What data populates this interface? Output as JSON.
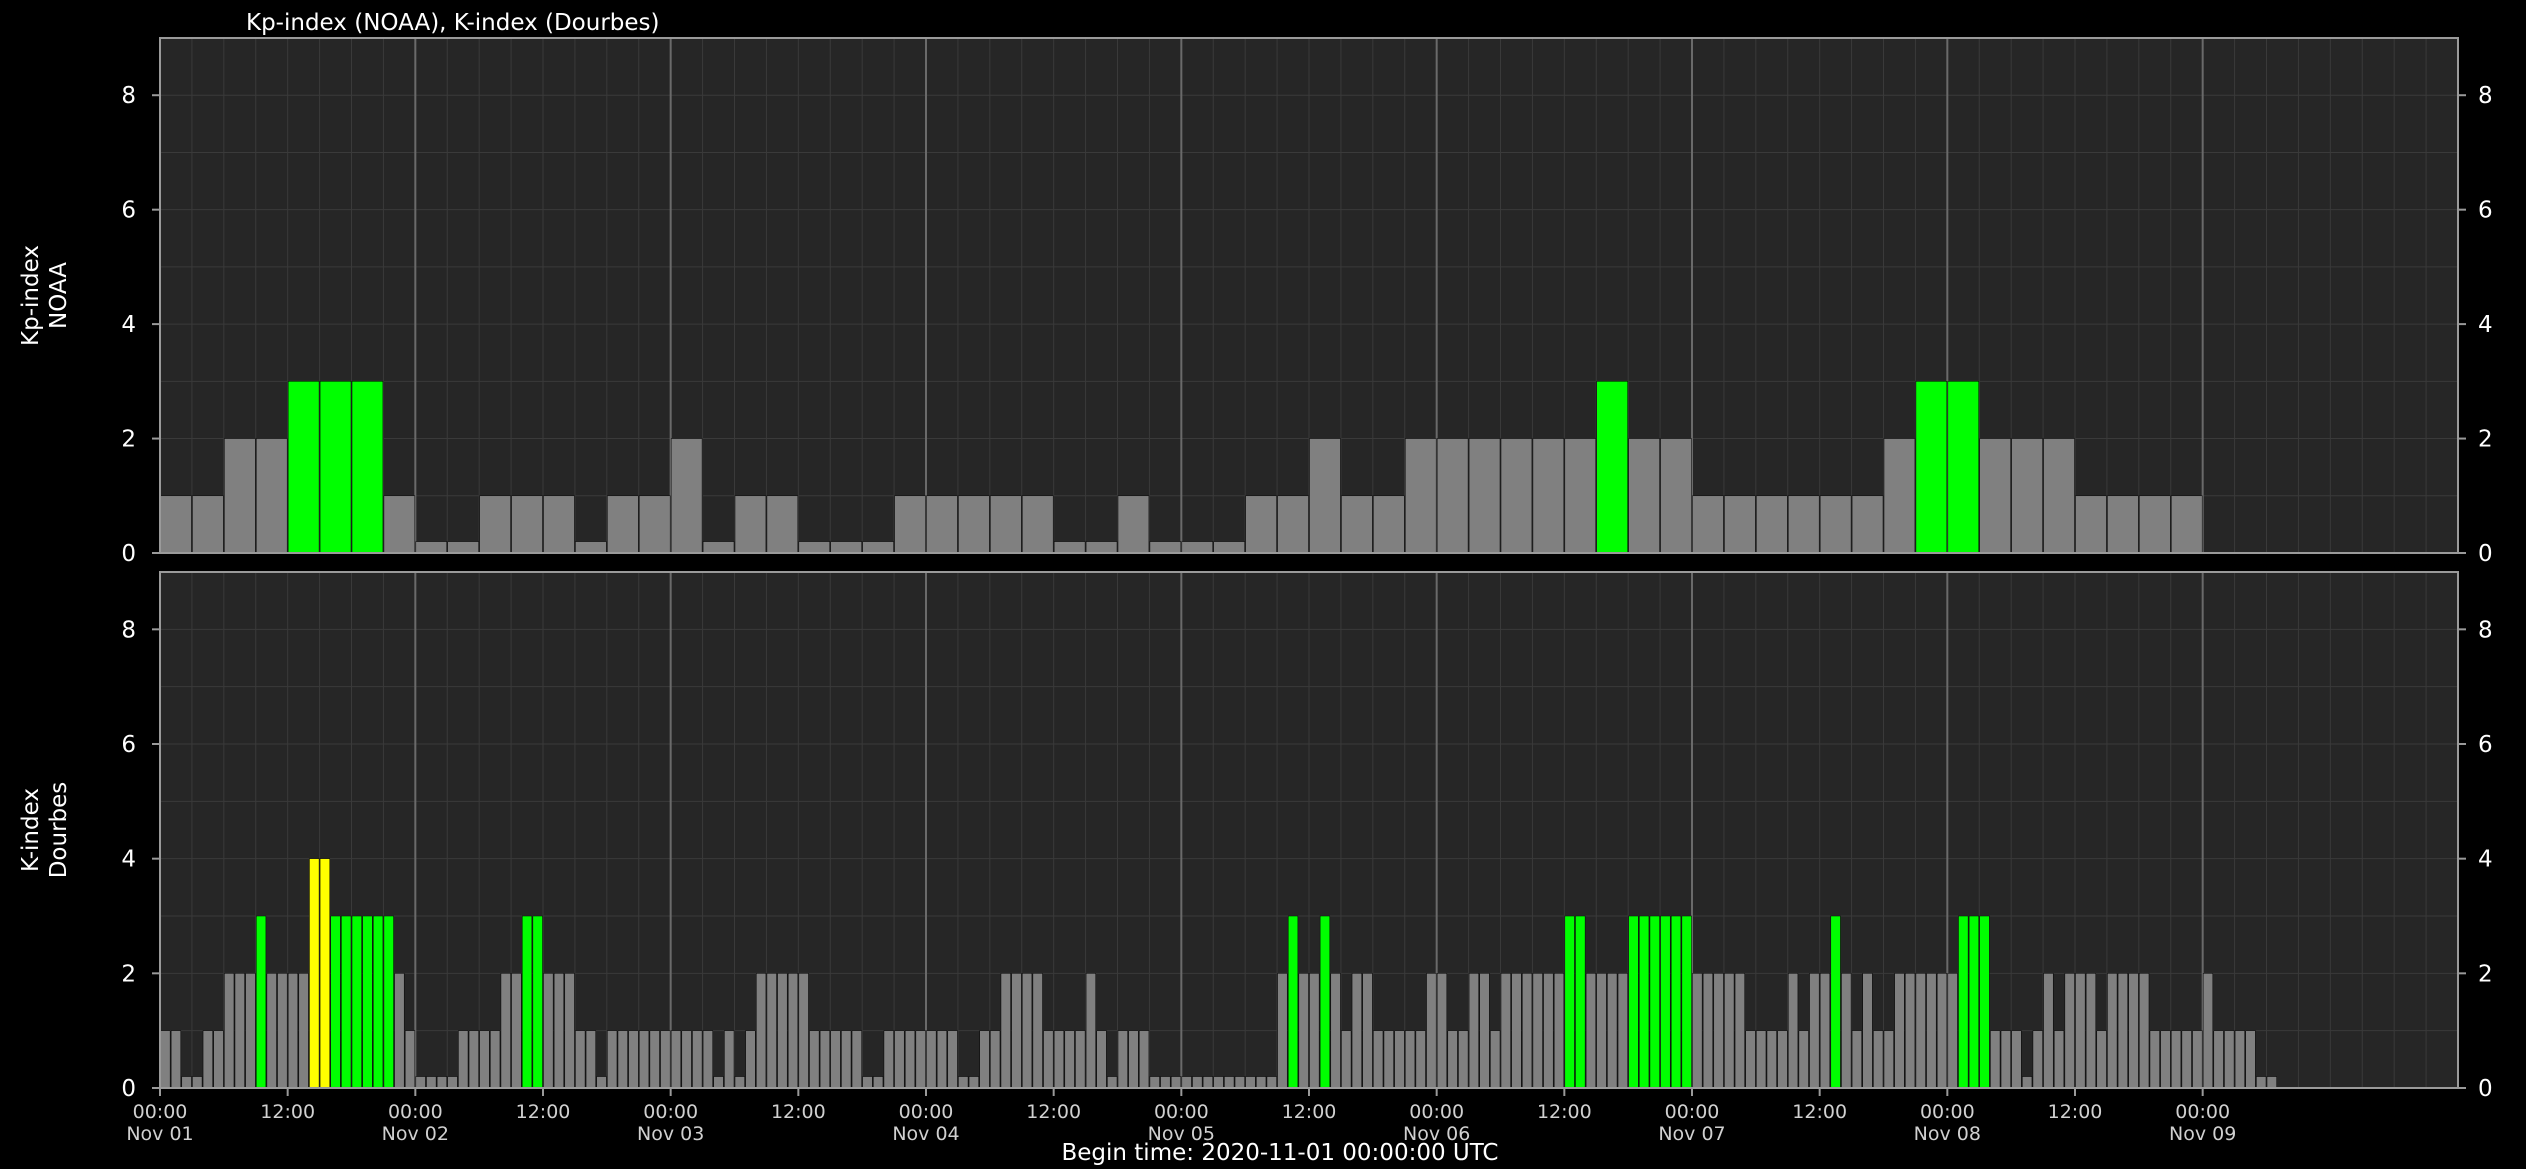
{
  "title": "Kp-index (NOAA), K-index (Dourbes)",
  "footer": "Begin time: 2020-11-01 00:00:00 UTC",
  "colors": {
    "background": "#000000",
    "plot_background": "#262626",
    "grid_minor": "#3a3a3a",
    "grid_major": "#6a6a6a",
    "axis": "#9a9a9a",
    "text": "#ffffff",
    "bar_quiet": "#808080",
    "bar_unsettled": "#00ff00",
    "bar_active": "#ffff00"
  },
  "x_ticks": [
    {
      "time": "00:00",
      "date": "Nov 01"
    },
    {
      "time": "12:00",
      "date": ""
    },
    {
      "time": "00:00",
      "date": "Nov 02"
    },
    {
      "time": "12:00",
      "date": ""
    },
    {
      "time": "00:00",
      "date": "Nov 03"
    },
    {
      "time": "12:00",
      "date": ""
    },
    {
      "time": "00:00",
      "date": "Nov 04"
    },
    {
      "time": "12:00",
      "date": ""
    },
    {
      "time": "00:00",
      "date": "Nov 05"
    },
    {
      "time": "12:00",
      "date": ""
    },
    {
      "time": "00:00",
      "date": "Nov 06"
    },
    {
      "time": "12:00",
      "date": ""
    },
    {
      "time": "00:00",
      "date": "Nov 07"
    },
    {
      "time": "12:00",
      "date": ""
    },
    {
      "time": "00:00",
      "date": "Nov 08"
    },
    {
      "time": "12:00",
      "date": ""
    },
    {
      "time": "00:00",
      "date": "Nov 09"
    }
  ],
  "chart_data": [
    {
      "type": "bar",
      "title": "Kp-index (NOAA)",
      "ylabel": [
        "Kp-index",
        "NOAA"
      ],
      "ylim": [
        0,
        9
      ],
      "yticks": [
        0,
        2,
        4,
        6,
        8
      ],
      "interval_hours": 3,
      "grid": true,
      "values": [
        1,
        1,
        2,
        2,
        3,
        3,
        3,
        1,
        0.2,
        0.2,
        1,
        1,
        1,
        0.2,
        1,
        1,
        2,
        0.2,
        1,
        1,
        0.2,
        0.2,
        0.2,
        1,
        1,
        1,
        1,
        1,
        0.2,
        0.2,
        1,
        0.2,
        0.2,
        0.2,
        1,
        1,
        2,
        1,
        1,
        2,
        2,
        2,
        2,
        2,
        2,
        3,
        2,
        2,
        1,
        1,
        1,
        1,
        1,
        1,
        2,
        3,
        3,
        2,
        2,
        2,
        1,
        1,
        1,
        1
      ]
    },
    {
      "type": "bar",
      "title": "K-index (Dourbes)",
      "ylabel": [
        "K-index",
        "Dourbes"
      ],
      "ylim": [
        0,
        9
      ],
      "yticks": [
        0,
        2,
        4,
        6,
        8
      ],
      "interval_hours": 1,
      "grid": true,
      "values": [
        1,
        1,
        0.2,
        0.2,
        1,
        1,
        2,
        2,
        2,
        3,
        2,
        2,
        2,
        2,
        4,
        4,
        3,
        3,
        3,
        3,
        3,
        3,
        2,
        1,
        0.2,
        0.2,
        0.2,
        0.2,
        1,
        1,
        1,
        1,
        2,
        2,
        3,
        3,
        2,
        2,
        2,
        1,
        1,
        0.2,
        1,
        1,
        1,
        1,
        1,
        1,
        1,
        1,
        1,
        1,
        0.2,
        1,
        0.2,
        1,
        2,
        2,
        2,
        2,
        2,
        1,
        1,
        1,
        1,
        1,
        0.2,
        0.2,
        1,
        1,
        1,
        1,
        1,
        1,
        1,
        0.2,
        0.2,
        1,
        1,
        2,
        2,
        2,
        2,
        1,
        1,
        1,
        1,
        2,
        1,
        0.2,
        1,
        1,
        1,
        0.2,
        0.2,
        0.2,
        0.2,
        0.2,
        0.2,
        0.2,
        0.2,
        0.2,
        0.2,
        0.2,
        0.2,
        2,
        3,
        2,
        2,
        3,
        2,
        1,
        2,
        2,
        1,
        1,
        1,
        1,
        1,
        2,
        2,
        1,
        1,
        2,
        2,
        1,
        2,
        2,
        2,
        2,
        2,
        2,
        3,
        3,
        2,
        2,
        2,
        2,
        3,
        3,
        3,
        3,
        3,
        3,
        2,
        2,
        2,
        2,
        2,
        1,
        1,
        1,
        1,
        2,
        1,
        2,
        2,
        3,
        2,
        1,
        2,
        1,
        1,
        2,
        2,
        2,
        2,
        2,
        2,
        3,
        3,
        3,
        1,
        1,
        1,
        0.2,
        1,
        2,
        1,
        2,
        2,
        2,
        1,
        2,
        2,
        2,
        2,
        1,
        1,
        1,
        1,
        1,
        2,
        1,
        1,
        1,
        1,
        0.2,
        0.2
      ]
    }
  ]
}
